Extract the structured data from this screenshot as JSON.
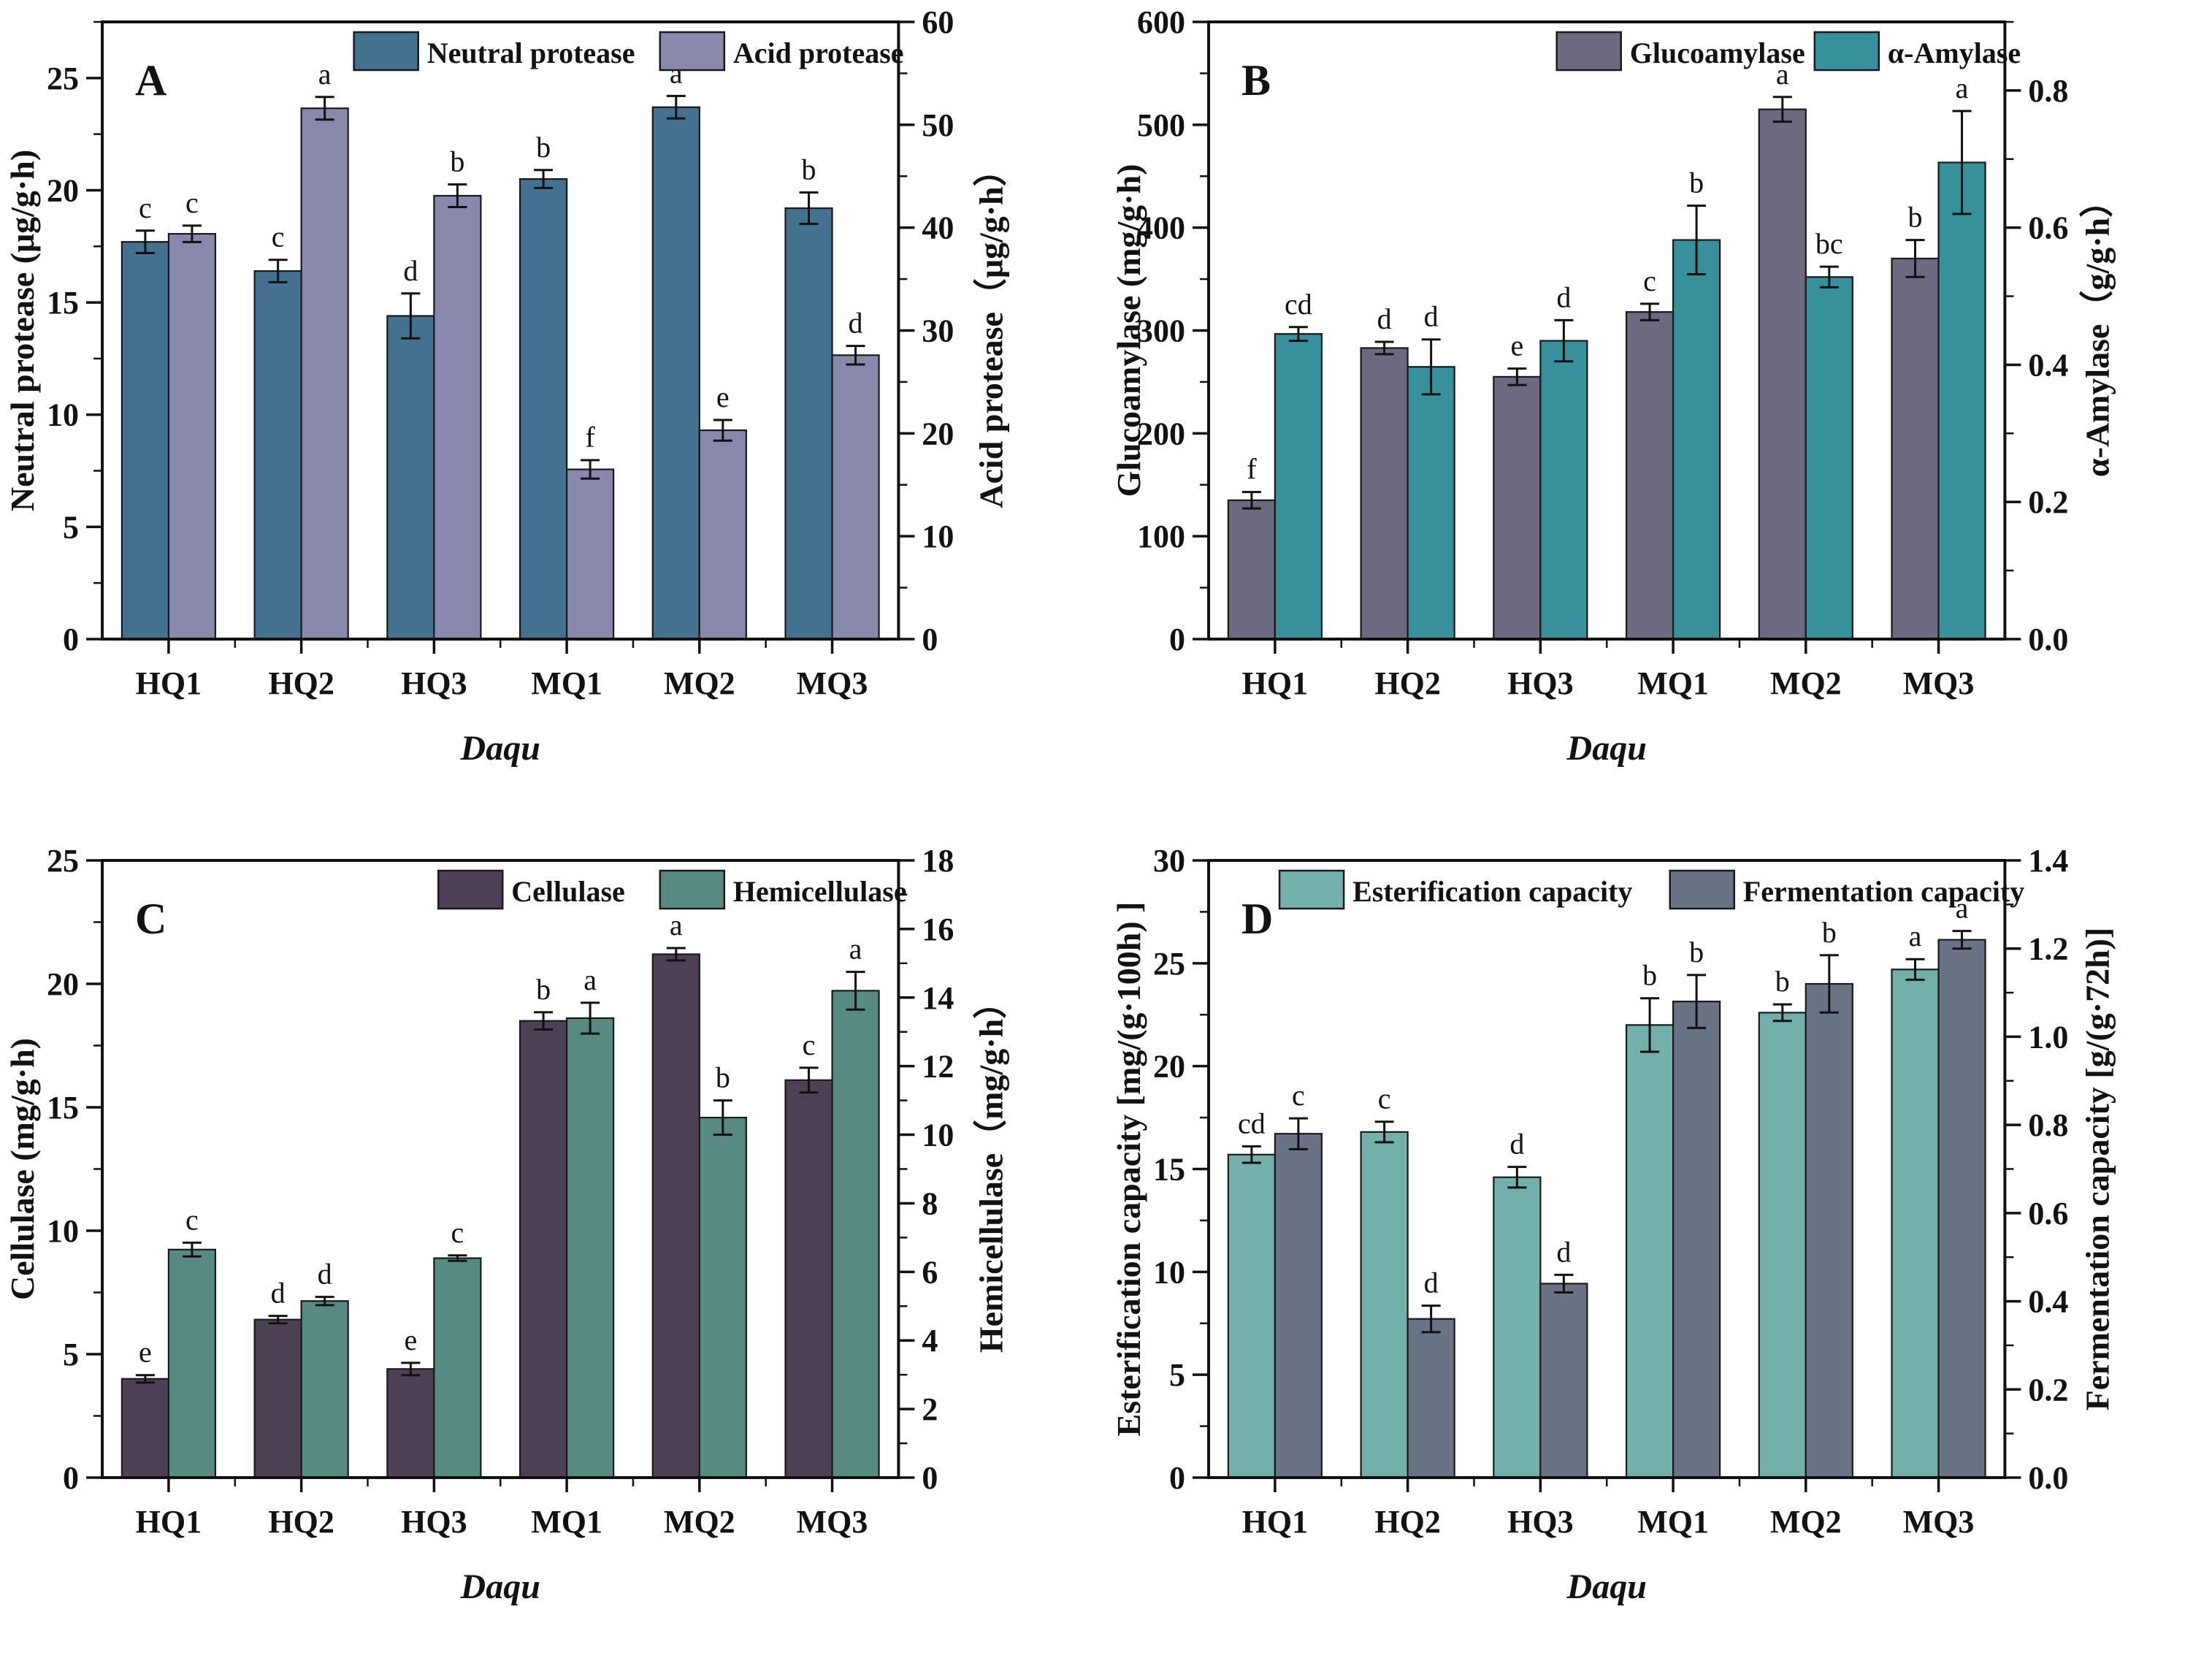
{
  "figure": {
    "description": "Enzyme activities and fermentation properties of Daqu samples",
    "x_axis_title": "Daqu",
    "categories": [
      "HQ1",
      "HQ2",
      "HQ3",
      "MQ1",
      "MQ2",
      "MQ3"
    ]
  },
  "chart_data": [
    {
      "panel_label": "A",
      "type": "bar",
      "categories": [
        "HQ1",
        "HQ2",
        "HQ3",
        "MQ1",
        "MQ2",
        "MQ3"
      ],
      "xlabel": "Daqu",
      "left_axis": {
        "label": "Neutral protease (μg/g·h)",
        "min": 0,
        "max": 27.5,
        "major_values": [
          0,
          5,
          10,
          15,
          20,
          25
        ],
        "major_labels": [
          "0",
          "5",
          "10",
          "15",
          "20",
          "25"
        ],
        "minor_step": 2.5
      },
      "right_axis": {
        "label": "Acid protease（μg/g·h）",
        "min": 0,
        "max": 60,
        "major_values": [
          0,
          10,
          20,
          30,
          40,
          50,
          60
        ],
        "major_labels": [
          "0",
          "10",
          "20",
          "30",
          "40",
          "50",
          "60"
        ],
        "minor_step": 5
      },
      "series": [
        {
          "name": "Neutral protease",
          "axis": "left",
          "color": "#44718f",
          "values": [
            17.7,
            16.4,
            14.4,
            20.5,
            23.7,
            19.2
          ],
          "errors": [
            0.5,
            0.5,
            1.0,
            0.4,
            0.5,
            0.7
          ],
          "letters": [
            "c",
            "c",
            "d",
            "b",
            "a",
            "b"
          ]
        },
        {
          "name": "Acid protease",
          "axis": "right",
          "color": "#8889ad",
          "values": [
            39.4,
            51.6,
            43.1,
            16.5,
            20.3,
            27.6
          ],
          "errors": [
            0.8,
            1.1,
            1.1,
            0.9,
            1.0,
            0.9
          ],
          "letters": [
            "c",
            "a",
            "b",
            "f",
            "e",
            "d"
          ]
        }
      ]
    },
    {
      "panel_label": "B",
      "type": "bar",
      "categories": [
        "HQ1",
        "HQ2",
        "HQ3",
        "MQ1",
        "MQ2",
        "MQ3"
      ],
      "xlabel": "Daqu",
      "left_axis": {
        "label": "Glucoamylase (mg/g·h)",
        "min": 0,
        "max": 600,
        "major_values": [
          0,
          100,
          200,
          300,
          400,
          500,
          600
        ],
        "major_labels": [
          "0",
          "100",
          "200",
          "300",
          "400",
          "500",
          "600"
        ],
        "minor_step": 50
      },
      "right_axis": {
        "label": "α-Amylase（g/g·h）",
        "min": 0,
        "max": 0.9,
        "major_values": [
          0,
          0.2,
          0.4,
          0.6,
          0.8
        ],
        "major_labels": [
          "0.0",
          "0.2",
          "0.4",
          "0.6",
          "0.8"
        ],
        "minor_step": 0.1
      },
      "series": [
        {
          "name": "Glucoamylase",
          "axis": "left",
          "color": "#6b6a80",
          "values": [
            135,
            283,
            255,
            318,
            515,
            370
          ],
          "errors": [
            8,
            6,
            8,
            8,
            12,
            18
          ],
          "letters": [
            "f",
            "d",
            "e",
            "c",
            "a",
            "b"
          ]
        },
        {
          "name": "α-Amylase",
          "axis": "right",
          "color": "#38909d",
          "values": [
            0.445,
            0.397,
            0.435,
            0.582,
            0.528,
            0.695
          ],
          "errors": [
            0.01,
            0.04,
            0.03,
            0.05,
            0.015,
            0.075
          ],
          "letters": [
            "cd",
            "d",
            "d",
            "b",
            "bc",
            "a"
          ]
        }
      ]
    },
    {
      "panel_label": "C",
      "type": "bar",
      "categories": [
        "HQ1",
        "HQ2",
        "HQ3",
        "MQ1",
        "MQ2",
        "MQ3"
      ],
      "xlabel": "Daqu",
      "left_axis": {
        "label": "Cellulase (mg/g·h)",
        "min": 0,
        "max": 25,
        "major_values": [
          0,
          5,
          10,
          15,
          20,
          25
        ],
        "major_labels": [
          "0",
          "5",
          "10",
          "15",
          "20",
          "25"
        ],
        "minor_step": 2.5
      },
      "right_axis": {
        "label": "Hemicellulase（mg/g·h）",
        "min": 0,
        "max": 18,
        "major_values": [
          0,
          2,
          4,
          6,
          8,
          10,
          12,
          14,
          16,
          18
        ],
        "major_labels": [
          "0",
          "2",
          "4",
          "6",
          "8",
          "10",
          "12",
          "14",
          "16",
          "18"
        ],
        "minor_step": 1
      },
      "series": [
        {
          "name": "Cellulase",
          "axis": "left",
          "color": "#4e4156",
          "values": [
            4.0,
            6.4,
            4.4,
            18.5,
            21.2,
            16.1
          ],
          "errors": [
            0.15,
            0.15,
            0.25,
            0.35,
            0.25,
            0.5
          ],
          "letters": [
            "e",
            "d",
            "e",
            "b",
            "a",
            "c"
          ]
        },
        {
          "name": "Hemicellulase",
          "axis": "right",
          "color": "#578b82",
          "values": [
            6.65,
            5.15,
            6.4,
            13.4,
            10.5,
            14.2
          ],
          "errors": [
            0.2,
            0.12,
            0.08,
            0.45,
            0.5,
            0.55
          ],
          "letters": [
            "c",
            "d",
            "c",
            "a",
            "b",
            "a"
          ]
        }
      ]
    },
    {
      "panel_label": "D",
      "type": "bar",
      "categories": [
        "HQ1",
        "HQ2",
        "HQ3",
        "MQ1",
        "MQ2",
        "MQ3"
      ],
      "xlabel": "Daqu",
      "left_axis": {
        "label": "Esterification capacity [mg/(g·100h) ]",
        "min": 0,
        "max": 30,
        "major_values": [
          0,
          5,
          10,
          15,
          20,
          25,
          30
        ],
        "major_labels": [
          "0",
          "5",
          "10",
          "15",
          "20",
          "25",
          "30"
        ],
        "minor_step": 2.5
      },
      "right_axis": {
        "label": "Fermentation capacity [g/(g·72h)]",
        "min": 0,
        "max": 1.4,
        "major_values": [
          0,
          0.2,
          0.4,
          0.6,
          0.8,
          1.0,
          1.2,
          1.4
        ],
        "major_labels": [
          "0.0",
          "0.2",
          "0.4",
          "0.6",
          "0.8",
          "1.0",
          "1.2",
          "1.4"
        ],
        "minor_step": 0.1
      },
      "series": [
        {
          "name": "Esterification capacity",
          "axis": "left",
          "color": "#74b0ab",
          "values": [
            15.7,
            16.8,
            14.6,
            22.0,
            22.6,
            24.7
          ],
          "errors": [
            0.4,
            0.5,
            0.5,
            1.3,
            0.4,
            0.5
          ],
          "letters": [
            "cd",
            "c",
            "d",
            "b",
            "b",
            "a"
          ]
        },
        {
          "name": "Fermentation capacity",
          "axis": "right",
          "color": "#6a7286",
          "values": [
            0.78,
            0.36,
            0.44,
            1.08,
            1.12,
            1.22
          ],
          "errors": [
            0.035,
            0.03,
            0.02,
            0.06,
            0.065,
            0.02
          ],
          "letters": [
            "c",
            "d",
            "d",
            "b",
            "b",
            "a"
          ]
        }
      ]
    }
  ]
}
